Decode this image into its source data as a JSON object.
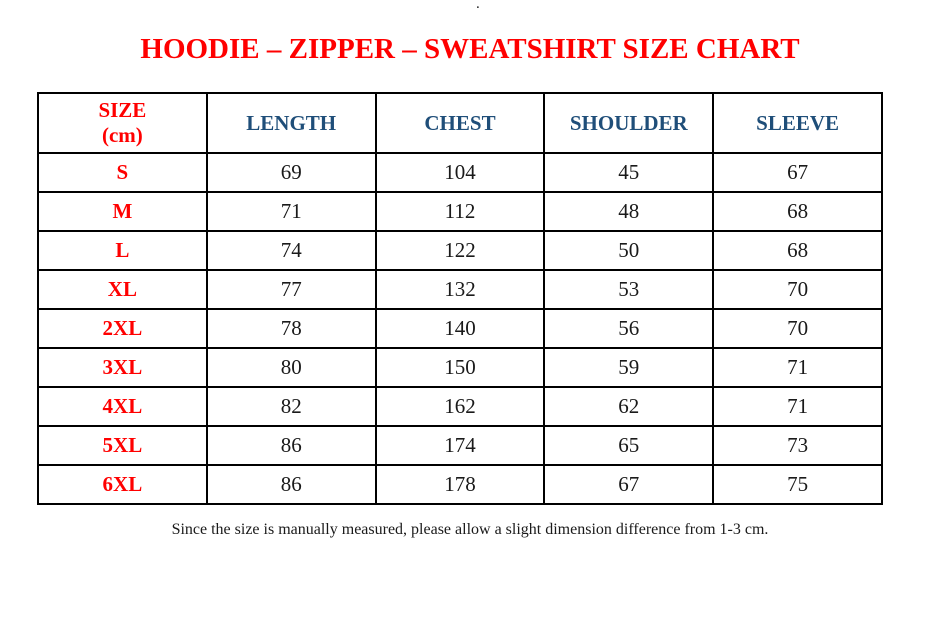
{
  "page": {
    "stray_mark": ".",
    "title": "HOODIE – ZIPPER – SWEATSHIRT SIZE CHART",
    "footer_note": "Since the size is manually measured, please allow a slight dimension difference from 1-3 cm."
  },
  "table_header": {
    "size_line1": "SIZE",
    "size_line2": "(cm)",
    "length": "LENGTH",
    "chest": "CHEST",
    "shoulder": "SHOULDER",
    "sleeve": "SLEEVE"
  },
  "chart_data": {
    "type": "table",
    "title": "HOODIE – ZIPPER – SWEATSHIRT SIZE CHART",
    "columns": [
      "SIZE (cm)",
      "LENGTH",
      "CHEST",
      "SHOULDER",
      "SLEEVE"
    ],
    "rows": [
      [
        "S",
        69,
        104,
        45,
        67
      ],
      [
        "M",
        71,
        112,
        48,
        68
      ],
      [
        "L",
        74,
        122,
        50,
        68
      ],
      [
        "XL",
        77,
        132,
        53,
        70
      ],
      [
        "2XL",
        78,
        140,
        56,
        70
      ],
      [
        "3XL",
        80,
        150,
        59,
        71
      ],
      [
        "4XL",
        82,
        162,
        62,
        71
      ],
      [
        "5XL",
        86,
        174,
        65,
        73
      ],
      [
        "6XL",
        86,
        178,
        67,
        75
      ]
    ],
    "note": "Since the size is manually measured, please allow a slight dimension difference from 1-3 cm.",
    "layout_hints": {
      "grid": "full black cell borders",
      "units": "cm"
    }
  },
  "colors": {
    "title_red": "#FF0000",
    "size_label_red": "#FF0000",
    "header_blue": "#1F4E79",
    "value_black": "#1A1A1A",
    "border_black": "#000000",
    "background": "#FFFFFF"
  }
}
